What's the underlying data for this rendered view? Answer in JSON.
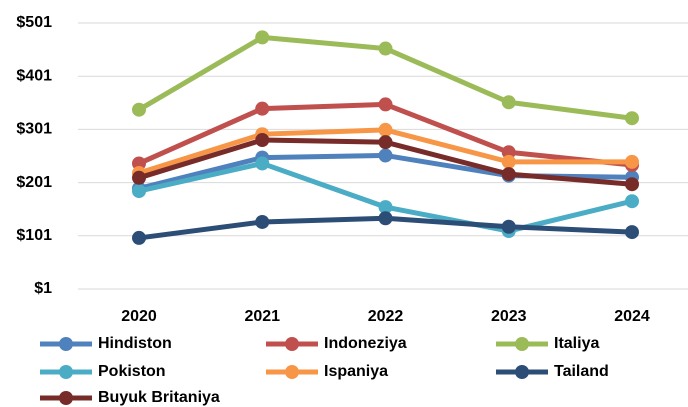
{
  "chart_data": {
    "type": "line",
    "categories": [
      "2020",
      "2021",
      "2022",
      "2023",
      "2024"
    ],
    "series": [
      {
        "name": "Hindiston",
        "color": "#4f81bd",
        "values": [
          190,
          248,
          252,
          214,
          211
        ]
      },
      {
        "name": "Indoneziya",
        "color": "#c0504d",
        "values": [
          237,
          340,
          348,
          258,
          234
        ]
      },
      {
        "name": "Italiya",
        "color": "#9bbb59",
        "values": [
          338,
          474,
          453,
          352,
          322
        ]
      },
      {
        "name": "Pokiston",
        "color": "#4bacc6",
        "values": [
          185,
          237,
          155,
          110,
          166
        ]
      },
      {
        "name": "Ispaniya",
        "color": "#f79646",
        "values": [
          219,
          292,
          300,
          240,
          240
        ]
      },
      {
        "name": "Tailand",
        "color": "#2c4d75",
        "values": [
          97,
          127,
          134,
          118,
          108
        ]
      },
      {
        "name": "Buyuk Britaniya",
        "color": "#772c2a",
        "values": [
          210,
          281,
          277,
          217,
          198
        ]
      }
    ],
    "ylim": [
      1,
      501
    ],
    "yticks": [
      {
        "value": 1,
        "label": "$1"
      },
      {
        "value": 101,
        "label": "$101"
      },
      {
        "value": 201,
        "label": "$201"
      },
      {
        "value": 301,
        "label": "$301"
      },
      {
        "value": 401,
        "label": "$401"
      },
      {
        "value": 501,
        "label": "$501"
      }
    ],
    "grid": true,
    "legend": "bottom"
  }
}
